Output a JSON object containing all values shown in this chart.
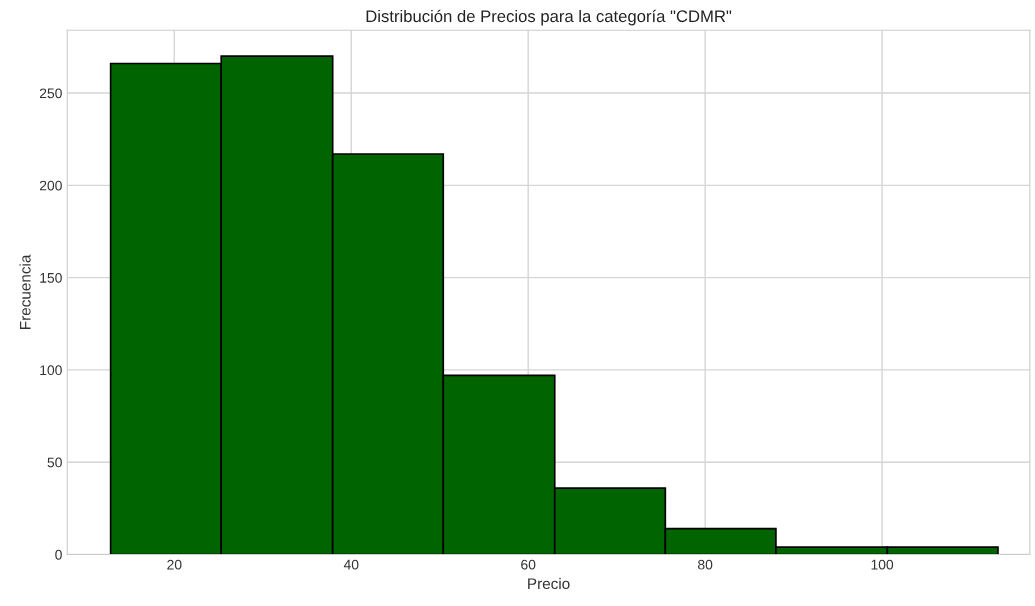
{
  "chart_data": {
    "type": "histogram",
    "title": "Distribución de Precios para la categoría \"CDMR\"",
    "xlabel": "Precio",
    "ylabel": "Frecuencia",
    "bins": [
      12.8,
      25.3,
      37.9,
      50.4,
      63.0,
      75.5,
      88.0,
      100.6,
      113.1
    ],
    "values": [
      266,
      270,
      217,
      97,
      36,
      14,
      4,
      4
    ],
    "color": "#006400",
    "xlim": [
      7.9,
      116.7
    ],
    "ylim": [
      0,
      284
    ],
    "xticks": [
      20,
      40,
      60,
      80,
      100
    ],
    "yticks": [
      0,
      50,
      100,
      150,
      200,
      250
    ],
    "grid": true
  }
}
